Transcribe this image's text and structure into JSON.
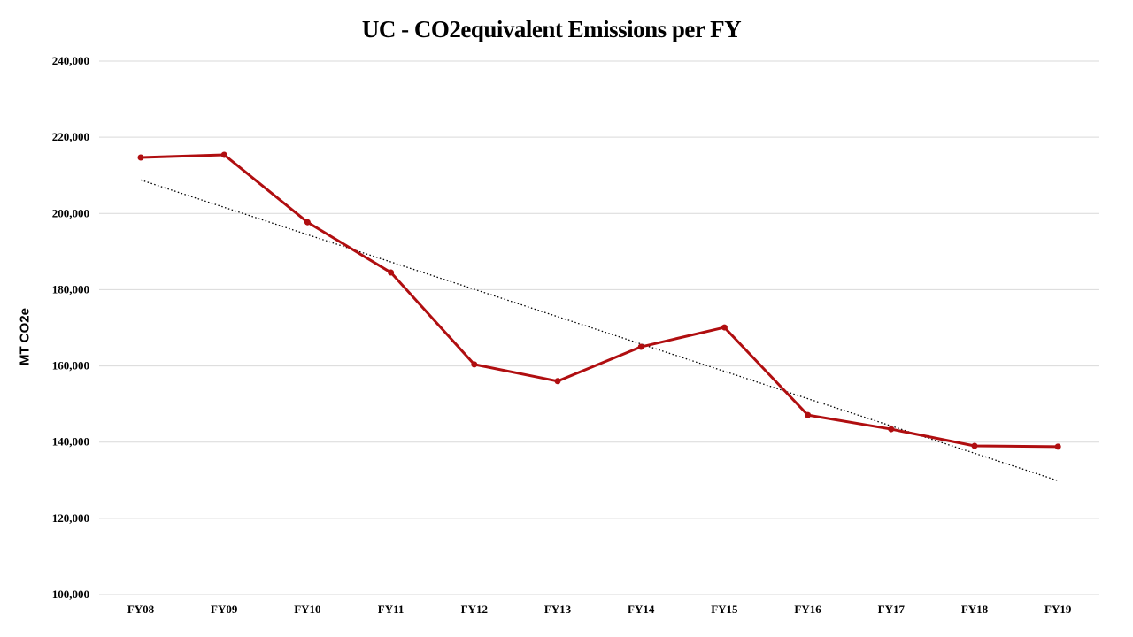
{
  "chart_data": {
    "type": "line",
    "title": "UC  - CO2equivalent Emissions per FY",
    "xlabel": "",
    "ylabel": "MT CO2e",
    "categories": [
      "FY08",
      "FY09",
      "FY10",
      "FY11",
      "FY12",
      "FY13",
      "FY14",
      "FY15",
      "FY16",
      "FY17",
      "FY18",
      "FY19"
    ],
    "series": [
      {
        "values": [
          214700,
          215400,
          197700,
          184500,
          160400,
          156000,
          165000,
          170100,
          147100,
          143400,
          139000,
          138800
        ],
        "color": "#B00E10"
      }
    ],
    "trendline": {
      "type": "linear",
      "style": "dotted",
      "color": "#000000"
    },
    "ylim": [
      100000,
      240000
    ],
    "yticks": [
      "100,000",
      "120,000",
      "140,000",
      "160,000",
      "180,000",
      "200,000",
      "220,000",
      "240,000"
    ],
    "grid": "horizontal",
    "legend": "none"
  }
}
